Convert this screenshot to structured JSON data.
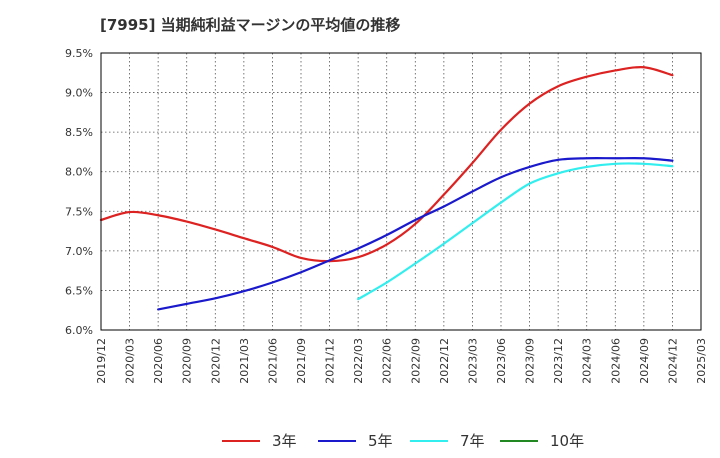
{
  "title": "[7995]  当期純利益マージンの平均値の推移",
  "chart_data": {
    "type": "line",
    "title": "[7995]  当期純利益マージンの平均値の推移",
    "xlabel": "",
    "ylabel": "",
    "ylim": [
      6.0,
      9.5
    ],
    "yticks": [
      "6.0%",
      "6.5%",
      "7.0%",
      "7.5%",
      "8.0%",
      "8.5%",
      "9.0%",
      "9.5%"
    ],
    "xticks": [
      "2019/12",
      "2020/03",
      "2020/06",
      "2020/09",
      "2020/12",
      "2021/03",
      "2021/06",
      "2021/09",
      "2021/12",
      "2022/03",
      "2022/06",
      "2022/09",
      "2022/12",
      "2023/03",
      "2023/06",
      "2023/09",
      "2023/12",
      "2024/03",
      "2024/06",
      "2024/09",
      "2024/12",
      "2025/03"
    ],
    "grid": true,
    "legend_position": "bottom",
    "series": [
      {
        "name": "3年",
        "color": "#dd2222",
        "x": [
          "2019/12",
          "2020/03",
          "2020/06",
          "2020/09",
          "2020/12",
          "2021/03",
          "2021/06",
          "2021/09",
          "2021/12",
          "2022/03",
          "2022/06",
          "2022/09",
          "2022/12",
          "2023/03",
          "2023/06",
          "2023/09",
          "2023/12",
          "2024/03",
          "2024/06",
          "2024/09",
          "2024/12"
        ],
        "values": [
          7.39,
          7.49,
          7.45,
          7.37,
          7.27,
          7.16,
          7.05,
          6.91,
          6.87,
          6.92,
          7.08,
          7.34,
          7.71,
          8.11,
          8.53,
          8.86,
          9.08,
          9.2,
          9.28,
          9.32,
          9.22
        ]
      },
      {
        "name": "5年",
        "color": "#1a1acc",
        "x": [
          "2020/06",
          "2020/09",
          "2020/12",
          "2021/03",
          "2021/06",
          "2021/09",
          "2021/12",
          "2022/03",
          "2022/06",
          "2022/09",
          "2022/12",
          "2023/03",
          "2023/06",
          "2023/09",
          "2023/12",
          "2024/03",
          "2024/06",
          "2024/09",
          "2024/12"
        ],
        "values": [
          6.26,
          6.33,
          6.4,
          6.49,
          6.6,
          6.73,
          6.88,
          7.03,
          7.2,
          7.39,
          7.56,
          7.75,
          7.93,
          8.06,
          8.15,
          8.17,
          8.17,
          8.17,
          8.14
        ]
      },
      {
        "name": "7年",
        "color": "#33eeee",
        "x": [
          "2022/03",
          "2022/06",
          "2022/09",
          "2022/12",
          "2023/03",
          "2023/06",
          "2023/09",
          "2023/12",
          "2024/03",
          "2024/06",
          "2024/09",
          "2024/12"
        ],
        "values": [
          6.39,
          6.6,
          6.84,
          7.09,
          7.35,
          7.61,
          7.85,
          7.98,
          8.06,
          8.1,
          8.1,
          8.07
        ]
      },
      {
        "name": "10年",
        "color": "#228822",
        "x": [],
        "values": []
      }
    ]
  }
}
